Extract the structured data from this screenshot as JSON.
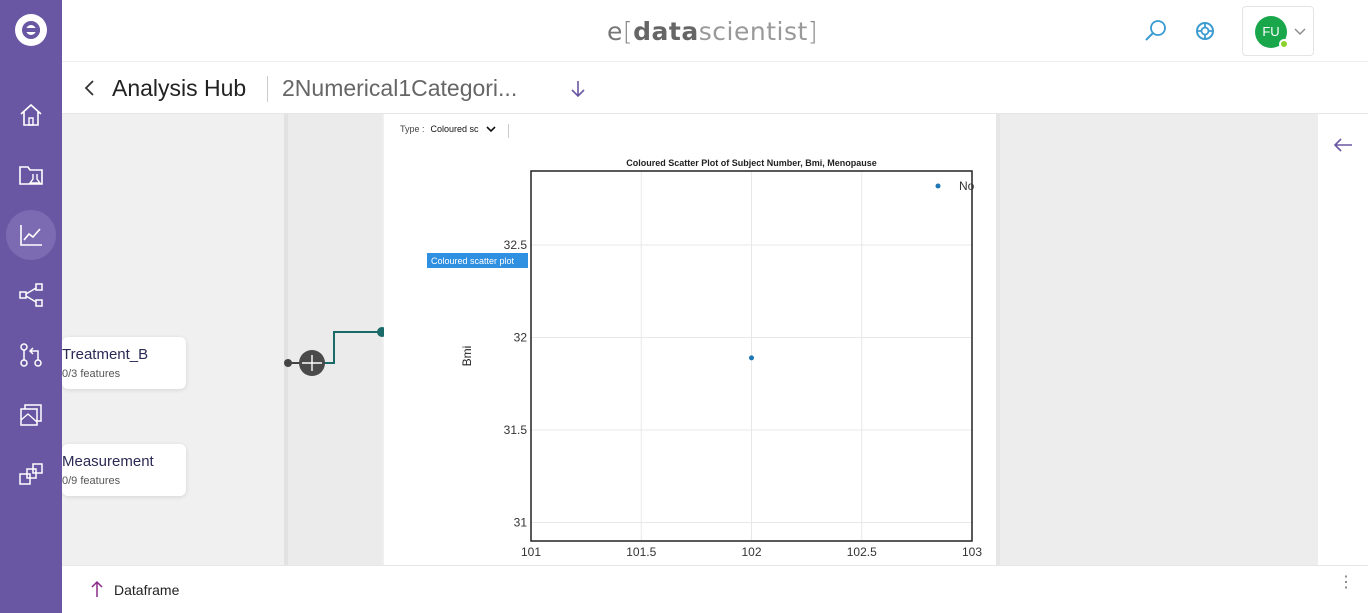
{
  "app": {
    "brand": {
      "e": "e",
      "open": "[",
      "data": "data",
      "scientist": "scientist",
      "close": "]"
    },
    "user_initials": "FU"
  },
  "breadcrumb": {
    "title": "Analysis Hub",
    "subtitle": "2Numerical1Categori..."
  },
  "nodes": [
    {
      "title": "Treatment_B",
      "subtitle": "0/3 features"
    },
    {
      "title": "Measurement",
      "subtitle": "0/9 features"
    }
  ],
  "plot_panel": {
    "type_label": "Type :",
    "type_value": "Coloured sc",
    "tooltip": "Coloured scatter plot"
  },
  "chart_data": {
    "type": "scatter",
    "title": "Coloured Scatter Plot of Subject Number, Bmi, Menopause",
    "xlabel": "",
    "ylabel": "Bmi",
    "xlim": [
      101,
      103
    ],
    "ylim": [
      30.9,
      32.9
    ],
    "xticks": [
      101,
      101.5,
      102,
      102.5,
      103
    ],
    "xtick_labels": [
      "101",
      "101.5",
      "102",
      "102.5",
      "103"
    ],
    "yticks": [
      31,
      31.5,
      32,
      32.5
    ],
    "ytick_labels": [
      "31",
      "31.5",
      "32",
      "32.5"
    ],
    "grid": true,
    "legend_position": "top-right",
    "series": [
      {
        "name": "No",
        "color": "#1f77b4",
        "points": [
          {
            "x": 102,
            "y": 31.89
          }
        ]
      }
    ]
  },
  "bottom": {
    "dataframe_label": "Dataframe"
  },
  "colors": {
    "rail": "#6a57a3",
    "accent": "#3a9bd1",
    "node_connector": "#1a6a6a",
    "avatar": "#1aa64b"
  }
}
